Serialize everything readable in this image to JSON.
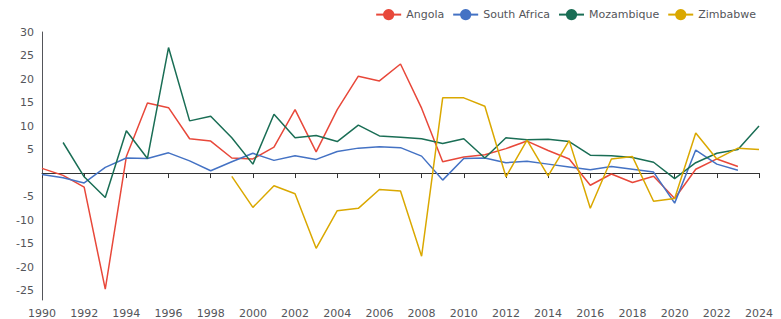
{
  "chart_data": {
    "type": "line",
    "x": [
      1990,
      1991,
      1992,
      1993,
      1994,
      1995,
      1996,
      1997,
      1998,
      1999,
      2000,
      2001,
      2002,
      2003,
      2004,
      2005,
      2006,
      2007,
      2008,
      2009,
      2010,
      2011,
      2012,
      2013,
      2014,
      2015,
      2016,
      2017,
      2018,
      2019,
      2020,
      2021,
      2022,
      2023,
      2024
    ],
    "series": [
      {
        "name": "Angola",
        "color": "#e8483a",
        "values": [
          1.0,
          -0.5,
          -3.0,
          -24.7,
          3.5,
          14.9,
          13.9,
          7.3,
          6.8,
          3.2,
          3.0,
          5.5,
          13.5,
          4.5,
          13.5,
          20.6,
          19.6,
          23.2,
          13.8,
          2.4,
          3.4,
          3.9,
          5.2,
          6.8,
          4.8,
          3.0,
          -2.6,
          -0.2,
          -2.0,
          -0.7,
          -5.4,
          0.8,
          3.0,
          1.4,
          null
        ]
      },
      {
        "name": "South Africa",
        "color": "#4472c4",
        "values": [
          -0.3,
          -1.0,
          -2.1,
          1.2,
          3.2,
          3.1,
          4.3,
          2.6,
          0.5,
          2.4,
          4.2,
          2.7,
          3.7,
          2.9,
          4.6,
          5.3,
          5.6,
          5.4,
          3.6,
          -1.5,
          3.1,
          3.2,
          2.2,
          2.5,
          1.9,
          1.3,
          0.7,
          1.4,
          0.8,
          0.2,
          -6.4,
          4.9,
          1.9,
          0.6,
          null
        ]
      },
      {
        "name": "Mozambique",
        "color": "#1a6e55",
        "values": [
          null,
          6.5,
          -0.8,
          -5.2,
          9.0,
          3.1,
          26.7,
          11.1,
          12.1,
          7.5,
          1.9,
          12.5,
          7.5,
          8.0,
          6.7,
          10.2,
          7.9,
          7.6,
          7.3,
          6.3,
          7.3,
          3.2,
          7.5,
          7.1,
          7.2,
          6.7,
          3.8,
          3.7,
          3.3,
          2.3,
          -1.2,
          2.2,
          4.2,
          5.0,
          10.0
        ]
      },
      {
        "name": "Zimbabwe",
        "color": "#daa800",
        "values": [
          null,
          null,
          null,
          null,
          null,
          null,
          null,
          null,
          null,
          -0.7,
          -7.3,
          -2.7,
          -4.4,
          -16.0,
          -8.0,
          -7.5,
          -3.5,
          -3.8,
          -17.7,
          16.0,
          16.0,
          14.2,
          -0.8,
          7.0,
          -0.6,
          6.9,
          -7.5,
          3.0,
          3.5,
          -6.0,
          -5.4,
          8.5,
          3.0,
          5.3,
          5.0
        ]
      }
    ],
    "xlim": [
      1990,
      2024
    ],
    "ylim": [
      -27,
      30
    ],
    "xticks": [
      1990,
      1992,
      1994,
      1996,
      1998,
      2000,
      2002,
      2004,
      2006,
      2008,
      2010,
      2012,
      2014,
      2016,
      2018,
      2020,
      2022,
      2024
    ],
    "yticks": [
      -25,
      -20,
      -15,
      -10,
      -5,
      5,
      10,
      15,
      20,
      25,
      30
    ],
    "grid": false,
    "legend": "upper right"
  }
}
